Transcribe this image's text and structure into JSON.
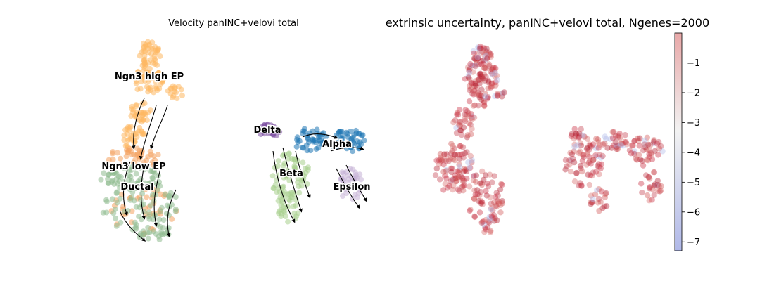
{
  "chart_data": [
    {
      "type": "scatter",
      "title": "Velocity panINC+velovi total",
      "clusters": [
        {
          "name": "Ngn3 high EP",
          "color": "#fdb863"
        },
        {
          "name": "Ngn3 low EP",
          "color": "#f4a261"
        },
        {
          "name": "Ductal",
          "color": "#8fbc8f"
        },
        {
          "name": "Delta",
          "color": "#7b4fa0"
        },
        {
          "name": "Alpha",
          "color": "#1f77b4"
        },
        {
          "name": "Beta",
          "color": "#a8d08d"
        },
        {
          "name": "Epsilon",
          "color": "#c5b0d5"
        }
      ],
      "overlay": "velocity stream arrows",
      "axes": "off"
    },
    {
      "type": "scatter",
      "title": "extrinsic uncertainty, panINC+velovi total, Ngenes=2000",
      "colorbar": {
        "ticks": [
          "−1",
          "−2",
          "−3",
          "−4",
          "−5",
          "−6",
          "−7"
        ],
        "range": [
          -7.3,
          0
        ],
        "colormap": "coolwarm",
        "low_color": "#b0b8e8",
        "high_color": "#e8a8a8"
      },
      "point_color": "#c8283c",
      "axes": "off"
    }
  ]
}
